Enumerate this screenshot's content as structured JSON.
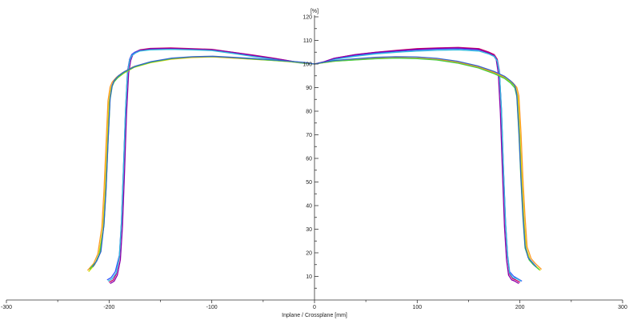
{
  "chart_data": {
    "type": "line",
    "title": "",
    "xlabel": "Inplane / Crossplane [mm]",
    "ylabel": "[%]",
    "xlim": [
      -300,
      300
    ],
    "ylim": [
      0,
      120
    ],
    "x_ticks": [
      -300,
      -200,
      -100,
      0,
      100,
      200,
      300
    ],
    "y_ticks": [
      10,
      20,
      30,
      40,
      50,
      60,
      70,
      80,
      90,
      100,
      110,
      120
    ],
    "grid": false,
    "series": [
      {
        "color": "#cc0066",
        "x": [
          -200,
          -196,
          -193,
          -190,
          -188,
          -186,
          -184,
          -182,
          -180,
          -178,
          -175,
          -170,
          -160,
          -140,
          -120,
          -100,
          -80,
          -60,
          -40,
          -20,
          -10,
          0,
          10,
          20,
          40,
          60,
          80,
          100,
          120,
          140,
          160,
          170,
          175,
          178,
          180,
          182,
          184,
          186,
          188,
          190,
          193,
          196,
          200
        ],
        "y": [
          7.5,
          8.5,
          11,
          18,
          32,
          55,
          80,
          97,
          102,
          104,
          105,
          106,
          106.6,
          106.8,
          106.5,
          106.2,
          105,
          103.8,
          102.5,
          101,
          100.5,
          100,
          101,
          102.5,
          104,
          105,
          105.8,
          106.5,
          106.8,
          107,
          106.5,
          105,
          104,
          102,
          97,
          80,
          55,
          32,
          18,
          11,
          9,
          8.5,
          7.5
        ]
      },
      {
        "color": "#3355ff",
        "x": [
          -202,
          -198,
          -194,
          -190,
          -188,
          -186,
          -184,
          -182,
          -180,
          -178,
          -175,
          -170,
          -160,
          -140,
          -120,
          -100,
          -80,
          -60,
          -40,
          -20,
          -10,
          0,
          10,
          20,
          40,
          60,
          80,
          100,
          120,
          140,
          160,
          170,
          175,
          178,
          180,
          182,
          184,
          186,
          188,
          190,
          194,
          198,
          202
        ],
        "y": [
          8.5,
          9.5,
          12,
          19,
          33,
          56,
          81,
          97,
          102,
          104,
          105,
          105.8,
          106.3,
          106.5,
          106.3,
          106,
          104.8,
          103.5,
          102.2,
          100.8,
          100.3,
          100,
          100.8,
          102.2,
          103.6,
          104.6,
          105.4,
          106,
          106.3,
          106.5,
          106,
          104.6,
          103.5,
          101.5,
          97,
          81,
          56,
          33,
          19,
          12,
          10,
          9,
          8
        ]
      },
      {
        "color": "#8800aa",
        "x": [
          -199,
          -195,
          -192,
          -189,
          -187,
          -185,
          -183,
          -181,
          -179,
          -177,
          -174,
          -169,
          -159,
          -139,
          -119,
          -99,
          -79,
          -59,
          -39,
          -19,
          -9,
          0,
          9,
          19,
          39,
          59,
          79,
          99,
          119,
          139,
          159,
          169,
          174,
          177,
          179,
          181,
          183,
          185,
          187,
          189,
          192,
          195,
          199
        ],
        "y": [
          7,
          8,
          10.5,
          17,
          31,
          54,
          79,
          96,
          101.5,
          103.8,
          104.8,
          105.8,
          106.5,
          106.6,
          106.3,
          106,
          104.9,
          103.6,
          102.3,
          100.9,
          100.4,
          100,
          100.9,
          102.4,
          103.9,
          104.9,
          105.6,
          106.2,
          106.6,
          106.8,
          106.3,
          104.8,
          103.8,
          101.8,
          96,
          79,
          54,
          31,
          17,
          10.5,
          8.5,
          8,
          7
        ]
      },
      {
        "color": "#33bbdd",
        "x": [
          -201,
          -197,
          -193,
          -190,
          -188,
          -186,
          -184,
          -182,
          -180,
          -178,
          -175,
          -170,
          -160,
          -140,
          -120,
          -100,
          -80,
          -60,
          -40,
          -20,
          -10,
          0,
          10,
          20,
          40,
          60,
          80,
          100,
          120,
          140,
          160,
          170,
          175,
          178,
          180,
          182,
          184,
          186,
          188,
          190,
          193,
          197,
          201
        ],
        "y": [
          8,
          9,
          11.5,
          18.5,
          32.5,
          55.5,
          80.5,
          96.5,
          101.5,
          103.5,
          104.5,
          105.5,
          106,
          106.2,
          106,
          105.7,
          104.5,
          103.2,
          102,
          100.7,
          100.2,
          100,
          100.7,
          102,
          103.3,
          104.3,
          105,
          105.5,
          105.8,
          106,
          105.5,
          104.2,
          103.2,
          101.2,
          96.5,
          80.5,
          55.5,
          32.5,
          18.5,
          11.5,
          9.5,
          9,
          8
        ]
      },
      {
        "color": "#ccdd00",
        "x": [
          -220,
          -214,
          -210,
          -206,
          -204,
          -202,
          -200,
          -198,
          -196,
          -192,
          -186,
          -176,
          -160,
          -140,
          -120,
          -100,
          -80,
          -60,
          -40,
          -20,
          -10,
          0,
          10,
          20,
          40,
          60,
          80,
          100,
          120,
          140,
          160,
          176,
          186,
          192,
          196,
          198,
          200,
          202,
          204,
          206,
          210,
          214,
          220
        ],
        "y": [
          12,
          15,
          19,
          30,
          45,
          65,
          84,
          90,
          92,
          94,
          96,
          98.5,
          100.5,
          102,
          102.7,
          103,
          102.5,
          102,
          101.5,
          100.8,
          100.4,
          100,
          100.6,
          101.2,
          101.8,
          102.3,
          102.6,
          102.4,
          101.8,
          100.5,
          98.5,
          96,
          94,
          92,
          90,
          86,
          70,
          50,
          34,
          22,
          17,
          15,
          12.5
        ]
      },
      {
        "color": "#ff9922",
        "x": [
          -221,
          -215,
          -211,
          -207,
          -205,
          -203,
          -201,
          -199,
          -197,
          -193,
          -187,
          -177,
          -161,
          -141,
          -121,
          -101,
          -81,
          -61,
          -41,
          -21,
          -11,
          0,
          11,
          21,
          41,
          61,
          81,
          101,
          121,
          141,
          161,
          177,
          187,
          193,
          197,
          199,
          201,
          203,
          205,
          207,
          211,
          215,
          221
        ],
        "y": [
          12.5,
          15.5,
          19.5,
          31,
          46,
          66,
          84.5,
          90.3,
          92.3,
          94.3,
          96.3,
          98.7,
          100.7,
          102.1,
          102.8,
          103.1,
          102.6,
          102.1,
          101.6,
          100.9,
          100.5,
          100,
          100.7,
          101.3,
          101.9,
          102.4,
          102.7,
          102.5,
          101.9,
          100.6,
          98.6,
          96.1,
          94.1,
          92.1,
          90.1,
          86.5,
          71,
          51,
          35,
          22.5,
          17.5,
          15.5,
          13
        ]
      },
      {
        "color": "#44cc44",
        "x": [
          -219,
          -213,
          -209,
          -205,
          -203,
          -201,
          -199,
          -197,
          -195,
          -191,
          -185,
          -175,
          -159,
          -139,
          -119,
          -99,
          -79,
          -59,
          -39,
          -19,
          -9,
          0,
          9,
          19,
          39,
          59,
          79,
          99,
          119,
          139,
          159,
          175,
          185,
          191,
          195,
          197,
          199,
          201,
          203,
          205,
          209,
          213,
          219
        ],
        "y": [
          13,
          16,
          20,
          31.5,
          46.5,
          66.5,
          85,
          90.5,
          92.5,
          94.5,
          96.5,
          98.8,
          100.8,
          102.3,
          103,
          103.2,
          102.7,
          102.1,
          101.5,
          100.9,
          100.5,
          100,
          100.6,
          101.2,
          101.7,
          102.2,
          102.5,
          102.3,
          101.7,
          100.4,
          98.4,
          95.9,
          93.9,
          91.9,
          89.9,
          86.2,
          70.5,
          50.5,
          34.5,
          22,
          17,
          15,
          12.8
        ]
      },
      {
        "color": "#3366cc",
        "x": [
          -216,
          -212,
          -208,
          -205,
          -203,
          -201,
          -199,
          -197,
          -195,
          -191,
          -185,
          -175,
          -159,
          -139,
          -119,
          -99,
          -79,
          -59,
          -39,
          -19,
          -9,
          0,
          9,
          19,
          39,
          59,
          79,
          99,
          119,
          139,
          159,
          175,
          185,
          191,
          195,
          197,
          199,
          201,
          203,
          205,
          208,
          212,
          216
        ],
        "y": [
          14,
          16.5,
          20.5,
          32,
          47,
          67,
          85.5,
          91,
          93,
          95,
          96.8,
          99,
          101,
          102.5,
          103.1,
          103.3,
          102.8,
          102.3,
          101.7,
          101,
          100.6,
          100,
          100.8,
          101.5,
          102.2,
          102.8,
          103.1,
          103,
          102.4,
          101.2,
          99.2,
          96.8,
          94.8,
          92.8,
          91,
          87,
          72,
          52,
          36,
          23,
          18,
          16,
          14
        ]
      }
    ]
  }
}
